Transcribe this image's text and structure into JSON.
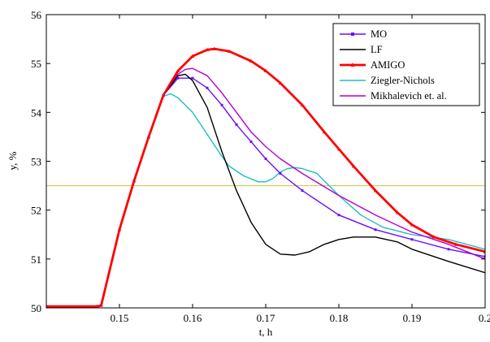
{
  "chart_data": {
    "type": "line",
    "title": "",
    "xlabel": "t, h",
    "ylabel": "y, %",
    "xlim": [
      0.14,
      0.2
    ],
    "ylim": [
      50,
      56
    ],
    "xticks": [
      0.15,
      0.16,
      0.17,
      0.18,
      0.19,
      0.2
    ],
    "xtick_labels": [
      "0.15",
      "0.16",
      "0.17",
      "0.18",
      "0.19",
      "0.2"
    ],
    "yticks": [
      50,
      51,
      52,
      53,
      54,
      55,
      56
    ],
    "ytick_labels": [
      "50",
      "51",
      "52",
      "53",
      "54",
      "55",
      "56"
    ],
    "grid": false,
    "legend_position": "top-right",
    "reference_line": {
      "y": 52.5,
      "color": "#c8c832"
    },
    "series": [
      {
        "name": "MO",
        "color": "#6a0dff",
        "marker": "square",
        "x": [
          0.14,
          0.147,
          0.1475,
          0.15,
          0.152,
          0.154,
          0.156,
          0.158,
          0.16,
          0.162,
          0.164,
          0.166,
          0.168,
          0.17,
          0.172,
          0.175,
          0.18,
          0.185,
          0.19,
          0.195,
          0.2
        ],
        "y": [
          50.03,
          50.03,
          50.05,
          51.6,
          52.6,
          53.5,
          54.35,
          54.7,
          54.7,
          54.5,
          54.15,
          53.75,
          53.4,
          53.05,
          52.75,
          52.4,
          51.9,
          51.6,
          51.4,
          51.2,
          51.05
        ]
      },
      {
        "name": "LF",
        "color": "#000000",
        "marker": "none",
        "x": [
          0.14,
          0.147,
          0.1475,
          0.15,
          0.152,
          0.154,
          0.156,
          0.158,
          0.159,
          0.16,
          0.162,
          0.164,
          0.166,
          0.168,
          0.17,
          0.172,
          0.174,
          0.176,
          0.178,
          0.18,
          0.182,
          0.185,
          0.188,
          0.19,
          0.195,
          0.2
        ],
        "y": [
          50.03,
          50.03,
          50.05,
          51.6,
          52.6,
          53.5,
          54.35,
          54.75,
          54.78,
          54.65,
          54.1,
          53.2,
          52.4,
          51.75,
          51.3,
          51.1,
          51.08,
          51.15,
          51.3,
          51.4,
          51.45,
          51.45,
          51.35,
          51.2,
          50.95,
          50.72
        ]
      },
      {
        "name": "AMIGO",
        "color": "#ff0000",
        "marker": "triangle",
        "x": [
          0.14,
          0.147,
          0.1475,
          0.15,
          0.152,
          0.154,
          0.156,
          0.158,
          0.16,
          0.162,
          0.163,
          0.165,
          0.168,
          0.17,
          0.172,
          0.175,
          0.178,
          0.18,
          0.182,
          0.185,
          0.188,
          0.19,
          0.193,
          0.196,
          0.2
        ],
        "y": [
          50.03,
          50.03,
          50.05,
          51.6,
          52.6,
          53.5,
          54.35,
          54.85,
          55.15,
          55.28,
          55.3,
          55.25,
          55.05,
          54.85,
          54.6,
          54.15,
          53.6,
          53.25,
          52.9,
          52.4,
          51.95,
          51.7,
          51.45,
          51.3,
          51.15
        ]
      },
      {
        "name": "Ziegler-Nichols",
        "color": "#1ebebe",
        "marker": "none",
        "x": [
          0.14,
          0.147,
          0.1475,
          0.15,
          0.152,
          0.154,
          0.156,
          0.157,
          0.158,
          0.16,
          0.162,
          0.164,
          0.165,
          0.167,
          0.169,
          0.17,
          0.171,
          0.172,
          0.173,
          0.174,
          0.175,
          0.177,
          0.178,
          0.18,
          0.183,
          0.186,
          0.19,
          0.195,
          0.2
        ],
        "y": [
          50.03,
          50.03,
          50.05,
          51.6,
          52.6,
          53.5,
          54.33,
          54.38,
          54.3,
          54.0,
          53.55,
          53.1,
          52.9,
          52.7,
          52.58,
          52.58,
          52.65,
          52.78,
          52.85,
          52.87,
          52.85,
          52.75,
          52.6,
          52.3,
          51.9,
          51.65,
          51.5,
          51.4,
          51.2
        ]
      },
      {
        "name": "Mikhalevich et. al.",
        "color": "#b400d2",
        "marker": "none",
        "x": [
          0.14,
          0.147,
          0.1475,
          0.15,
          0.152,
          0.154,
          0.156,
          0.158,
          0.159,
          0.16,
          0.162,
          0.164,
          0.166,
          0.168,
          0.17,
          0.172,
          0.175,
          0.18,
          0.185,
          0.19,
          0.195,
          0.2
        ],
        "y": [
          50.03,
          50.03,
          50.05,
          51.6,
          52.6,
          53.5,
          54.35,
          54.78,
          54.88,
          54.9,
          54.75,
          54.4,
          54.0,
          53.6,
          53.3,
          53.05,
          52.75,
          52.3,
          51.9,
          51.55,
          51.3,
          51.0
        ]
      }
    ]
  }
}
